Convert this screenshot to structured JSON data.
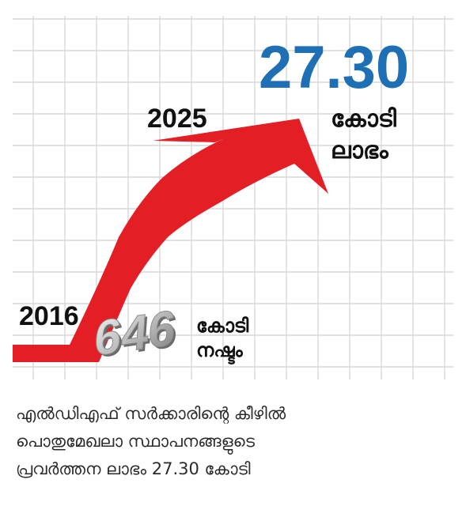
{
  "chart_data": {
    "type": "line",
    "x": [
      "2016",
      "2025"
    ],
    "series": [
      {
        "values": [
          -646,
          27.3
        ]
      }
    ],
    "labels": {
      "start_year": "2016",
      "end_year": "2025",
      "start_value": "646",
      "start_unit_line1": "കോടി",
      "start_unit_line2": "നഷ്ടം",
      "end_value": "27.30",
      "end_unit_line1": "കോടി",
      "end_unit_line2": "ലാഭം"
    },
    "grid": true
  },
  "caption": {
    "line1": "എൽഡിഎഫ് സർക്കാരിന്റെ കീഴിൽ",
    "line2": "പൊതുമേഖലാ സ്ഥാപനങ്ങളുടെ",
    "line3": "പ്രവർത്തന ലാഭം 27.30 കോടി"
  },
  "colors": {
    "arrow": "#e31e24",
    "value_highlight": "#1f6fb4",
    "grid": "#d7d7d7",
    "text": "#111111"
  }
}
